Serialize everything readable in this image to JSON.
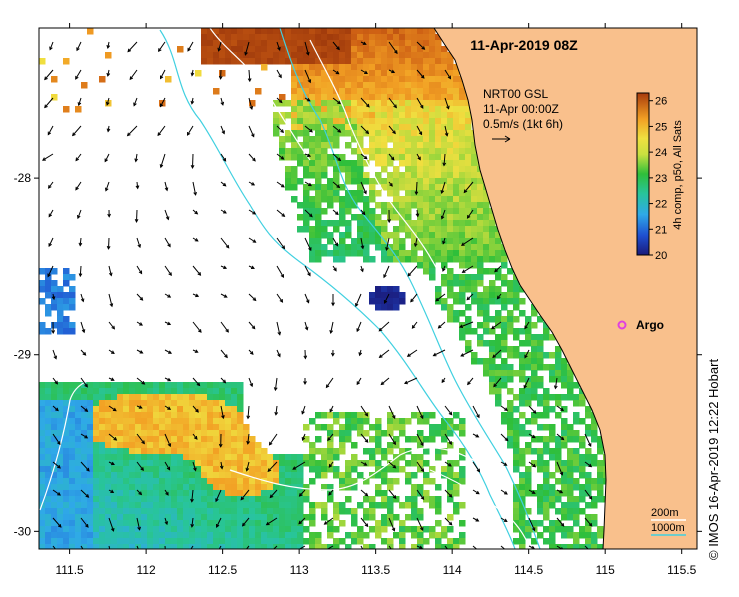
{
  "title": "11-Apr-2019 08Z",
  "current_legend": {
    "line1": "NRT00 GSL",
    "line2": "11-Apr 00:00Z",
    "line3": "0.5m/s (1kt 6h)"
  },
  "colorbar": {
    "label": "4h comp, p50, All Sats",
    "ticks": [
      "26",
      "25",
      "24",
      "23",
      "22",
      "21",
      "20"
    ],
    "range": [
      20,
      26.3
    ]
  },
  "station": {
    "label": "Argo",
    "lon": 115.12,
    "lat": -28.83,
    "color": "#e040e0"
  },
  "axes": {
    "x_ticks": [
      "111.5",
      "112",
      "112.5",
      "113",
      "113.5",
      "114",
      "114.5",
      "115",
      "115.5"
    ],
    "y_ticks": [
      "-28",
      "-29",
      "-30"
    ],
    "lon_range": [
      111.3,
      115.6
    ],
    "lat_range": [
      -30.1,
      -27.15
    ]
  },
  "isobath_legend": {
    "label1": "200m",
    "label2": "1000m",
    "color": "#40d0e0"
  },
  "land_color": "#f9c08c",
  "copyright": "© IMOS 16-Apr-2019 12:22 Hobart"
}
